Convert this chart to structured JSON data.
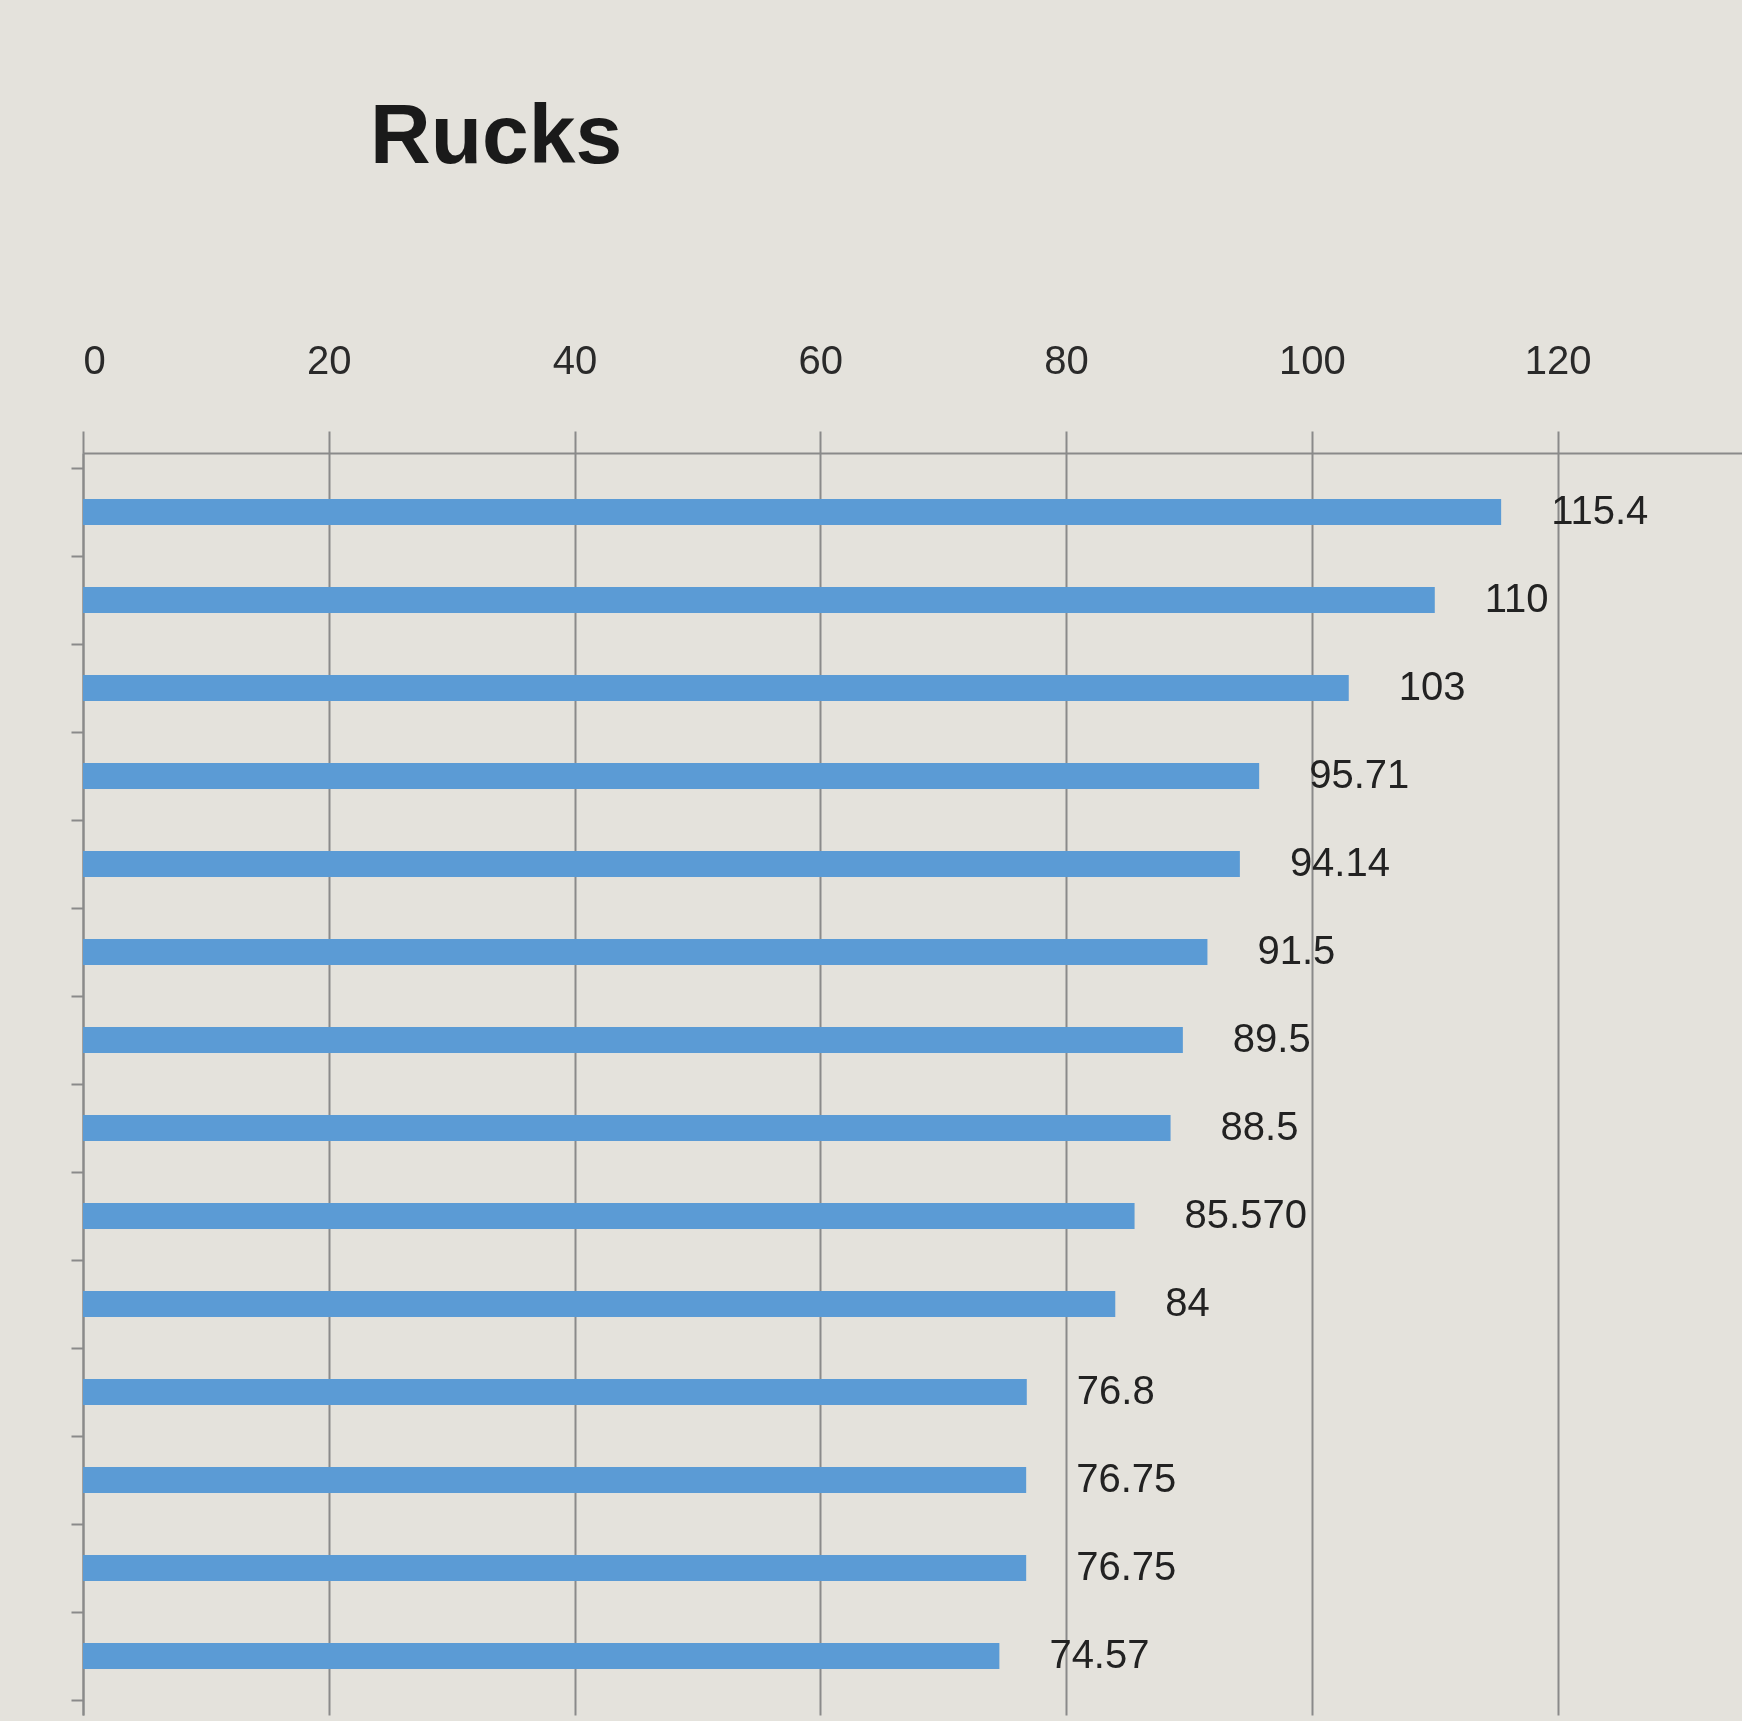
{
  "chart_data": {
    "type": "bar",
    "orientation": "horizontal",
    "title": "Rucks",
    "categories": [
      null,
      null,
      null,
      null,
      null,
      null,
      null,
      null,
      null,
      null,
      null,
      null,
      null,
      null
    ],
    "values": [
      115.4,
      110,
      103,
      95.71,
      94.14,
      91.5,
      89.5,
      88.5,
      85.57,
      84,
      76.8,
      76.75,
      76.75,
      74.57
    ],
    "value_labels": [
      "115.4",
      "110",
      "103",
      "95.71",
      "94.14",
      "91.5",
      "89.5",
      "88.5",
      "85.570",
      "84",
      "76.8",
      "76.75",
      "76.75",
      "74.57"
    ],
    "color": "#5b9bd5",
    "xlim": [
      0,
      135
    ],
    "xticks": [
      0,
      20,
      40,
      60,
      80,
      100,
      120
    ],
    "grid": "x",
    "tick_labels": "x"
  }
}
